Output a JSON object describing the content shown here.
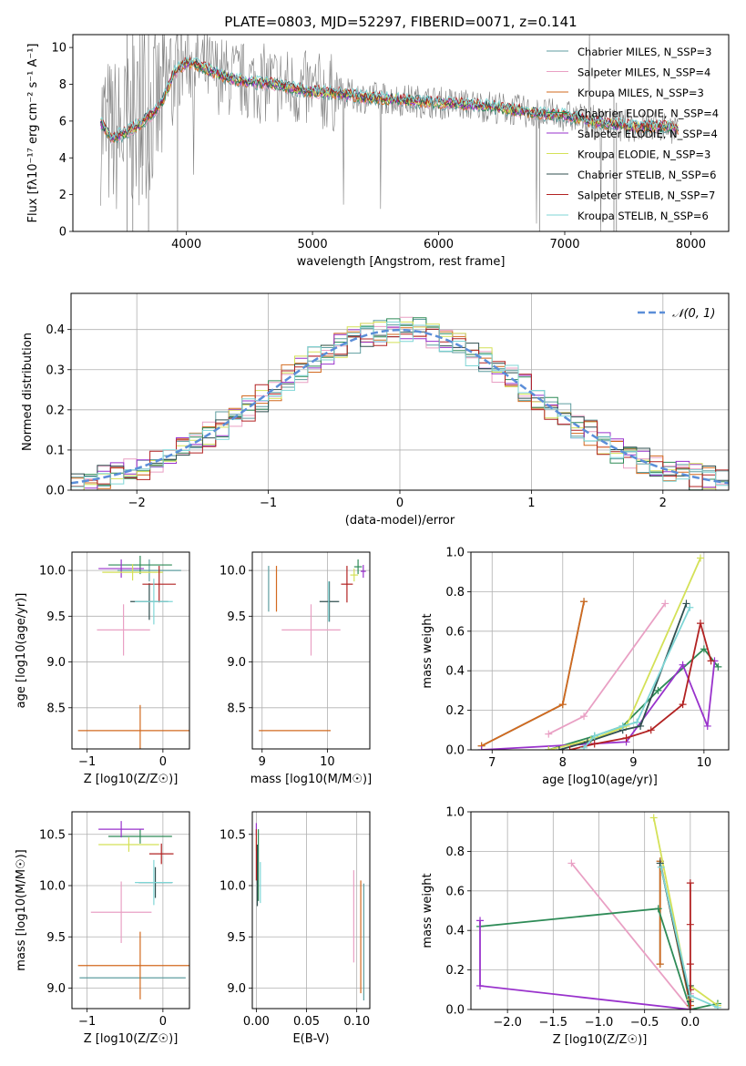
{
  "figure": {
    "title": "PLATE=0803, MJD=52297, FIBERID=0071, z=0.141"
  },
  "colors": {
    "MILES_Chabrier": "#5f9ea0",
    "MILES_Salpeter": "#e9a0c4",
    "MILES_Kroupa": "#d2691e",
    "ELODIE_Chabrier": "#2e8b57",
    "ELODIE_Salpeter": "#9932cc",
    "ELODIE_Kroupa": "#d4e157",
    "STELIB_Chabrier": "#2f4f4f",
    "STELIB_Salpeter": "#b22222",
    "STELIB_Kroupa": "#7fd6d6",
    "data": "#7f7f7f",
    "normal": "#5b8ed8"
  },
  "chart_data": [
    {
      "id": "spectrum",
      "type": "line",
      "title": "PLATE=0803, MJD=52297, FIBERID=0071, z=0.141",
      "xlabel": "wavelength [Angstrom, rest frame]",
      "ylabel": "Flux [fλ10⁻¹⁷ erg cm⁻² s⁻¹ A⁻¹]",
      "xlim": [
        3100,
        8300
      ],
      "ylim": [
        0,
        10.7
      ],
      "xticks": [
        4000,
        5000,
        6000,
        7000,
        8000
      ],
      "yticks": [
        0,
        2,
        4,
        6,
        8,
        10
      ],
      "grid": false,
      "legend_position": "top-right",
      "legend": [
        "Chabrier MILES, N_SSP=3",
        "Salpeter MILES, N_SSP=4",
        "Kroupa MILES, N_SSP=3",
        "Chabrier ELODIE, N_SSP=4",
        "Salpeter ELODIE, N_SSP=4",
        "Kroupa ELODIE, N_SSP=3",
        "Chabrier STELIB, N_SSP=6",
        "Salpeter STELIB, N_SSP=7",
        "Kroupa STELIB, N_SSP=6"
      ],
      "model_continuum": {
        "x": [
          3320,
          3400,
          3500,
          3600,
          3700,
          3800,
          3900,
          4000,
          4100,
          4300,
          4500,
          4700,
          4900,
          5000,
          5200,
          5400,
          5600,
          5800,
          6000,
          6200,
          6400,
          6600,
          6800,
          7000,
          7200,
          7400,
          7600,
          7800,
          7900
        ],
        "y": [
          5.9,
          5.1,
          5.3,
          5.7,
          6.2,
          6.9,
          8.6,
          9.2,
          9.0,
          8.4,
          8.1,
          8.0,
          7.7,
          7.6,
          7.5,
          7.3,
          7.2,
          7.1,
          7.0,
          6.9,
          6.8,
          6.6,
          6.4,
          6.3,
          6.0,
          5.8,
          5.7,
          5.7,
          5.6
        ]
      }
    },
    {
      "id": "residuals",
      "type": "bar",
      "xlabel": "(data-model)/error",
      "ylabel": "Normed distribution",
      "xlim": [
        -2.5,
        2.5
      ],
      "ylim": [
        0,
        0.49
      ],
      "xticks": [
        -2,
        -1,
        0,
        1,
        2
      ],
      "yticks": [
        0.0,
        0.1,
        0.2,
        0.3,
        0.4
      ],
      "grid": true,
      "legend_position": "top-right",
      "legend": [
        "𝒩(0, 1)"
      ],
      "bin_width": 0.1,
      "histogram_center": [
        0.02,
        0.04,
        0.05,
        0.06,
        0.08,
        0.1,
        0.13,
        0.16,
        0.19,
        0.22,
        0.24,
        0.26,
        0.28,
        0.3,
        0.33,
        0.36,
        0.38,
        0.39,
        0.4,
        0.41,
        0.4,
        0.39,
        0.4,
        0.4,
        0.39,
        0.38,
        0.36,
        0.33,
        0.31,
        0.29,
        0.26,
        0.23,
        0.21,
        0.18,
        0.15,
        0.12,
        0.11,
        0.09,
        0.07,
        0.06,
        0.05,
        0.04,
        0.03,
        0.02
      ]
    },
    {
      "id": "age-vs-Z",
      "type": "scatter",
      "xlabel": "Z [log10(Z/Z☉)]",
      "ylabel": "age  [log10(age/yr)]",
      "xlim": [
        -1.2,
        0.35
      ],
      "ylim": [
        8.05,
        10.2
      ],
      "xticks": [
        -1,
        0
      ],
      "yticks": [
        8.5,
        9.0,
        9.5,
        10.0
      ],
      "grid": true,
      "points": [
        {
          "model": "MILES_Chabrier",
          "x": -0.18,
          "xerr": 0.42,
          "y": 10.0,
          "yerr": 0.12
        },
        {
          "model": "MILES_Salpeter",
          "x": -0.52,
          "xerr": 0.35,
          "y": 9.35,
          "yerr": 0.28
        },
        {
          "model": "MILES_Kroupa",
          "x": -0.3,
          "xerr": 0.82,
          "y": 8.25,
          "yerr": 0.28
        },
        {
          "model": "ELODIE_Chabrier",
          "x": -0.3,
          "xerr": 0.42,
          "y": 10.06,
          "yerr": 0.1
        },
        {
          "model": "ELODIE_Salpeter",
          "x": -0.55,
          "xerr": 0.3,
          "y": 10.02,
          "yerr": 0.1
        },
        {
          "model": "ELODIE_Kroupa",
          "x": -0.4,
          "xerr": 0.4,
          "y": 9.98,
          "yerr": 0.09
        },
        {
          "model": "STELIB_Chabrier",
          "x": -0.18,
          "xerr": 0.25,
          "y": 9.66,
          "yerr": 0.2
        },
        {
          "model": "STELIB_Salpeter",
          "x": -0.05,
          "xerr": 0.22,
          "y": 9.85,
          "yerr": 0.2
        },
        {
          "model": "STELIB_Kroupa",
          "x": -0.12,
          "xerr": 0.25,
          "y": 9.66,
          "yerr": 0.25
        }
      ]
    },
    {
      "id": "age-vs-mass",
      "type": "scatter",
      "xlabel": "mass [log10(M/M☉)]",
      "ylabel": "",
      "xlim": [
        8.85,
        10.65
      ],
      "ylim": [
        8.05,
        10.2
      ],
      "xticks": [
        9,
        10
      ],
      "yticks": [
        8.5,
        9.0,
        9.5,
        10.0
      ],
      "grid": true,
      "points": [
        {
          "model": "MILES_Chabrier",
          "x": 9.1,
          "xerr": 0.0,
          "y": 9.8,
          "yerr": 0.25
        },
        {
          "model": "MILES_Salpeter",
          "x": 9.75,
          "xerr": 0.45,
          "y": 9.35,
          "yerr": 0.28
        },
        {
          "model": "MILES_Kroupa",
          "x": 9.22,
          "xerr": 0.0,
          "y": 9.8,
          "yerr": 0.25
        },
        {
          "model": "MILES_Kroupa",
          "x": 9.5,
          "xerr": 0.55,
          "y": 8.25,
          "yerr": 0.0
        },
        {
          "model": "ELODIE_Chabrier",
          "x": 10.47,
          "xerr": 0.06,
          "y": 10.04,
          "yerr": 0.08
        },
        {
          "model": "ELODIE_Salpeter",
          "x": 10.55,
          "xerr": 0.04,
          "y": 9.99,
          "yerr": 0.07
        },
        {
          "model": "ELODIE_Kroupa",
          "x": 10.41,
          "xerr": 0.06,
          "y": 9.95,
          "yerr": 0.07
        },
        {
          "model": "STELIB_Chabrier",
          "x": 10.03,
          "xerr": 0.15,
          "y": 9.66,
          "yerr": 0.22
        },
        {
          "model": "STELIB_Salpeter",
          "x": 10.3,
          "xerr": 0.09,
          "y": 9.85,
          "yerr": 0.2
        },
        {
          "model": "STELIB_Kroupa",
          "x": 10.02,
          "xerr": 0.0,
          "y": 9.66,
          "yerr": 0.22
        }
      ]
    },
    {
      "id": "weight-vs-age",
      "type": "line",
      "xlabel": "age  [log10(age/yr)]",
      "ylabel": "mass weight",
      "xlim": [
        6.7,
        10.35
      ],
      "ylim": [
        0,
        1.0
      ],
      "xticks": [
        7,
        8,
        9,
        10
      ],
      "yticks": [
        0.0,
        0.2,
        0.4,
        0.6,
        0.8,
        1.0
      ],
      "grid": true,
      "series": [
        {
          "model": "MILES_Chabrier",
          "x": [
            6.85,
            8.0,
            8.3
          ],
          "y": [
            0.02,
            0.23,
            0.75
          ]
        },
        {
          "model": "MILES_Salpeter",
          "x": [
            7.8,
            8.3,
            9.45
          ],
          "y": [
            0.08,
            0.17,
            0.74
          ]
        },
        {
          "model": "MILES_Kroupa",
          "x": [
            6.85,
            8.0,
            8.3
          ],
          "y": [
            0.02,
            0.23,
            0.75
          ]
        },
        {
          "model": "ELODIE_Chabrier",
          "x": [
            7.8,
            8.45,
            8.85,
            9.35,
            10.0,
            10.2
          ],
          "y": [
            0.0,
            0.07,
            0.12,
            0.3,
            0.51,
            0.42
          ]
        },
        {
          "model": "ELODIE_Salpeter",
          "x": [
            6.85,
            8.9,
            9.7,
            10.05,
            10.15
          ],
          "y": [
            0.0,
            0.04,
            0.43,
            0.12,
            0.45
          ]
        },
        {
          "model": "ELODIE_Kroupa",
          "x": [
            7.8,
            8.4,
            8.9,
            9.95
          ],
          "y": [
            0.0,
            0.05,
            0.12,
            0.97
          ]
        },
        {
          "model": "STELIB_Chabrier",
          "x": [
            7.95,
            8.35,
            8.85,
            9.1,
            9.75
          ],
          "y": [
            0.0,
            0.04,
            0.1,
            0.12,
            0.74
          ]
        },
        {
          "model": "STELIB_Salpeter",
          "x": [
            8.1,
            8.45,
            8.9,
            9.25,
            9.7,
            9.95,
            10.1
          ],
          "y": [
            0.0,
            0.03,
            0.06,
            0.1,
            0.23,
            0.64,
            0.45
          ]
        },
        {
          "model": "STELIB_Kroupa",
          "x": [
            8.3,
            8.45,
            8.85,
            9.05,
            9.8
          ],
          "y": [
            0.01,
            0.07,
            0.12,
            0.14,
            0.72
          ]
        }
      ]
    },
    {
      "id": "mass-vs-Z",
      "type": "scatter",
      "xlabel": "Z [log10(Z/Z☉)]",
      "ylabel": "mass [log10(M/M☉)]",
      "xlim": [
        -1.2,
        0.35
      ],
      "ylim": [
        8.8,
        10.72
      ],
      "xticks": [
        -1,
        0
      ],
      "yticks": [
        9.0,
        9.5,
        10.0,
        10.5
      ],
      "grid": true,
      "points": [
        {
          "model": "MILES_Chabrier",
          "x": -0.4,
          "xerr": 0.7,
          "y": 9.1,
          "yerr": 0.0
        },
        {
          "model": "MILES_Salpeter",
          "x": -0.55,
          "xerr": 0.4,
          "y": 9.74,
          "yerr": 0.3
        },
        {
          "model": "MILES_Kroupa",
          "x": -0.3,
          "xerr": 0.82,
          "y": 9.22,
          "yerr": 0.33
        },
        {
          "model": "ELODIE_Chabrier",
          "x": -0.3,
          "xerr": 0.42,
          "y": 10.48,
          "yerr": 0.07
        },
        {
          "model": "ELODIE_Salpeter",
          "x": -0.55,
          "xerr": 0.3,
          "y": 10.55,
          "yerr": 0.08
        },
        {
          "model": "ELODIE_Kroupa",
          "x": -0.45,
          "xerr": 0.4,
          "y": 10.4,
          "yerr": 0.07
        },
        {
          "model": "STELIB_Chabrier",
          "x": -0.1,
          "xerr": 0.22,
          "y": 10.03,
          "yerr": 0.15
        },
        {
          "model": "STELIB_Salpeter",
          "x": -0.02,
          "xerr": 0.16,
          "y": 10.31,
          "yerr": 0.1
        },
        {
          "model": "STELIB_Kroupa",
          "x": -0.12,
          "xerr": 0.25,
          "y": 10.03,
          "yerr": 0.22
        }
      ]
    },
    {
      "id": "mass-vs-EBV",
      "type": "scatter",
      "xlabel": "E(B-V)",
      "ylabel": "",
      "xlim": [
        -0.004,
        0.113
      ],
      "ylim": [
        8.8,
        10.72
      ],
      "xticks": [
        0.0,
        0.05,
        0.1
      ],
      "xticklabels": [
        "0.00",
        "0.05",
        "0.10"
      ],
      "yticks": [
        9.0,
        9.5,
        10.0,
        10.5
      ],
      "grid": true,
      "points": [
        {
          "model": "MILES_Chabrier",
          "x": 0.107,
          "xerr": 0.0,
          "y": 9.45,
          "yerr": 0.57
        },
        {
          "model": "MILES_Salpeter",
          "x": 0.097,
          "xerr": 0.0,
          "y": 9.7,
          "yerr": 0.45
        },
        {
          "model": "MILES_Kroupa",
          "x": 0.104,
          "xerr": 0.0,
          "y": 9.5,
          "yerr": 0.55
        },
        {
          "model": "ELODIE_Chabrier",
          "x": 0.002,
          "xerr": 0.0,
          "y": 10.2,
          "yerr": 0.35
        },
        {
          "model": "ELODIE_Salpeter",
          "x": 0.0,
          "xerr": 0.0,
          "y": 10.55,
          "yerr": 0.06
        },
        {
          "model": "ELODIE_Kroupa",
          "x": 0.0,
          "xerr": 0.0,
          "y": 10.4,
          "yerr": 0.06
        },
        {
          "model": "STELIB_Chabrier",
          "x": 0.001,
          "xerr": 0.0,
          "y": 10.1,
          "yerr": 0.3
        },
        {
          "model": "STELIB_Salpeter",
          "x": 0.0,
          "xerr": 0.0,
          "y": 10.3,
          "yerr": 0.25
        },
        {
          "model": "STELIB_Kroupa",
          "x": 0.004,
          "xerr": 0.0,
          "y": 10.03,
          "yerr": 0.2
        }
      ]
    },
    {
      "id": "weight-vs-Z",
      "type": "line",
      "xlabel": "Z [log10(Z/Z☉)]",
      "ylabel": "mass weight",
      "xlim": [
        -2.4,
        0.42
      ],
      "ylim": [
        0,
        1.0
      ],
      "xticks": [
        -2.0,
        -1.5,
        -1.0,
        -0.5,
        0.0
      ],
      "xticklabels": [
        "−2.0",
        "−1.5",
        "−1.0",
        "−0.5",
        "0.0"
      ],
      "yticks": [
        0.0,
        0.2,
        0.4,
        0.6,
        0.8,
        1.0
      ],
      "grid": true,
      "series": [
        {
          "model": "MILES_Chabrier",
          "x": [
            -0.33,
            -0.33,
            0.0
          ],
          "y": [
            0.23,
            0.75,
            0.02
          ]
        },
        {
          "model": "MILES_Salpeter",
          "x": [
            -1.3,
            0.0,
            0.0
          ],
          "y": [
            0.74,
            0.0,
            0.08
          ]
        },
        {
          "model": "MILES_Kroupa",
          "x": [
            -0.33,
            -0.33,
            0.0
          ],
          "y": [
            0.23,
            0.75,
            0.02
          ]
        },
        {
          "model": "ELODIE_Chabrier",
          "x": [
            -2.3,
            -0.35,
            0.0,
            0.3
          ],
          "y": [
            0.42,
            0.51,
            0.0,
            0.03
          ]
        },
        {
          "model": "ELODIE_Salpeter",
          "x": [
            -2.3,
            -2.3,
            0.0
          ],
          "y": [
            0.45,
            0.12,
            0.0
          ]
        },
        {
          "model": "ELODIE_Kroupa",
          "x": [
            -0.4,
            0.0,
            0.0,
            0.3
          ],
          "y": [
            0.97,
            0.05,
            0.12,
            0.02
          ]
        },
        {
          "model": "STELIB_Chabrier",
          "x": [
            -0.33,
            0.0,
            0.0
          ],
          "y": [
            0.74,
            0.04,
            0.12
          ]
        },
        {
          "model": "STELIB_Salpeter",
          "x": [
            0.0,
            0.0,
            0.0,
            0.0,
            0.0
          ],
          "y": [
            0.0,
            0.1,
            0.23,
            0.43,
            0.64
          ]
        },
        {
          "model": "STELIB_Kroupa",
          "x": [
            -0.32,
            0.0,
            0.3
          ],
          "y": [
            0.72,
            0.07,
            0.01
          ]
        }
      ]
    }
  ]
}
